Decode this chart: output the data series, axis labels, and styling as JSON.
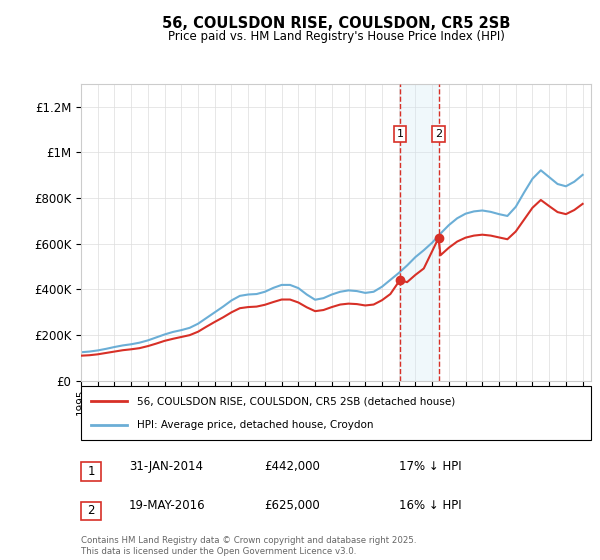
{
  "title": "56, COULSDON RISE, COULSDON, CR5 2SB",
  "subtitle": "Price paid vs. HM Land Registry's House Price Index (HPI)",
  "legend_line1": "56, COULSDON RISE, COULSDON, CR5 2SB (detached house)",
  "legend_line2": "HPI: Average price, detached house, Croydon",
  "footer": "Contains HM Land Registry data © Crown copyright and database right 2025.\nThis data is licensed under the Open Government Licence v3.0.",
  "transaction1": {
    "label": "1",
    "date": "31-JAN-2014",
    "price": 442000,
    "hpi_diff": "17% ↓ HPI",
    "year": 2014.08
  },
  "transaction2": {
    "label": "2",
    "date": "19-MAY-2016",
    "price": 625000,
    "hpi_diff": "16% ↓ HPI",
    "year": 2016.38
  },
  "hpi_color": "#6baed6",
  "property_color": "#d73027",
  "shade_color": "#d0e8f5",
  "dashed_color": "#d73027",
  "ylim": [
    0,
    1300000
  ],
  "yticks": [
    0,
    200000,
    400000,
    600000,
    800000,
    1000000,
    1200000
  ],
  "ytick_labels": [
    "£0",
    "£200K",
    "£400K",
    "£600K",
    "£800K",
    "£1M",
    "£1.2M"
  ],
  "hpi_data": {
    "years": [
      1995.0,
      1995.5,
      1996.0,
      1996.5,
      1997.0,
      1997.5,
      1998.0,
      1998.5,
      1999.0,
      1999.5,
      2000.0,
      2000.5,
      2001.0,
      2001.5,
      2002.0,
      2002.5,
      2003.0,
      2003.5,
      2004.0,
      2004.5,
      2005.0,
      2005.5,
      2006.0,
      2006.5,
      2007.0,
      2007.5,
      2008.0,
      2008.5,
      2009.0,
      2009.5,
      2010.0,
      2010.5,
      2011.0,
      2011.5,
      2012.0,
      2012.5,
      2013.0,
      2013.5,
      2014.0,
      2014.5,
      2015.0,
      2015.5,
      2016.0,
      2016.5,
      2017.0,
      2017.5,
      2018.0,
      2018.5,
      2019.0,
      2019.5,
      2020.0,
      2020.5,
      2021.0,
      2021.5,
      2022.0,
      2022.5,
      2023.0,
      2023.5,
      2024.0,
      2024.5,
      2025.0
    ],
    "values": [
      125000,
      128000,
      133000,
      140000,
      148000,
      155000,
      160000,
      167000,
      177000,
      190000,
      203000,
      214000,
      222000,
      232000,
      250000,
      275000,
      300000,
      325000,
      352000,
      372000,
      378000,
      380000,
      390000,
      407000,
      420000,
      420000,
      406000,
      378000,
      355000,
      362000,
      378000,
      390000,
      396000,
      393000,
      385000,
      390000,
      412000,
      442000,
      472000,
      505000,
      542000,
      572000,
      605000,
      645000,
      682000,
      712000,
      732000,
      742000,
      746000,
      740000,
      730000,
      722000,
      762000,
      825000,
      885000,
      922000,
      892000,
      862000,
      852000,
      872000,
      902000
    ]
  },
  "property_data": {
    "years": [
      1995.0,
      1995.5,
      1996.0,
      1996.5,
      1997.0,
      1997.5,
      1998.0,
      1998.5,
      1999.0,
      1999.5,
      2000.0,
      2000.5,
      2001.0,
      2001.5,
      2002.0,
      2002.5,
      2003.0,
      2003.5,
      2004.0,
      2004.5,
      2005.0,
      2005.5,
      2006.0,
      2006.5,
      2007.0,
      2007.5,
      2008.0,
      2008.5,
      2009.0,
      2009.5,
      2010.0,
      2010.5,
      2011.0,
      2011.5,
      2012.0,
      2012.5,
      2013.0,
      2013.5,
      2014.08,
      2014.5,
      2015.0,
      2015.5,
      2016.38,
      2016.5,
      2017.0,
      2017.5,
      2018.0,
      2018.5,
      2019.0,
      2019.5,
      2020.0,
      2020.5,
      2021.0,
      2021.5,
      2022.0,
      2022.5,
      2023.0,
      2023.5,
      2024.0,
      2024.5,
      2025.0
    ],
    "values": [
      110000,
      112000,
      116000,
      122000,
      128000,
      134000,
      138000,
      143000,
      152000,
      163000,
      175000,
      184000,
      192000,
      200000,
      215000,
      237000,
      258000,
      278000,
      300000,
      318000,
      323000,
      325000,
      333000,
      345000,
      356000,
      356000,
      343000,
      322000,
      305000,
      310000,
      323000,
      334000,
      338000,
      336000,
      330000,
      334000,
      353000,
      380000,
      442000,
      432000,
      464000,
      492000,
      625000,
      550000,
      583000,
      610000,
      627000,
      636000,
      640000,
      636000,
      628000,
      620000,
      654000,
      706000,
      758000,
      792000,
      765000,
      739000,
      730000,
      748000,
      775000
    ]
  }
}
